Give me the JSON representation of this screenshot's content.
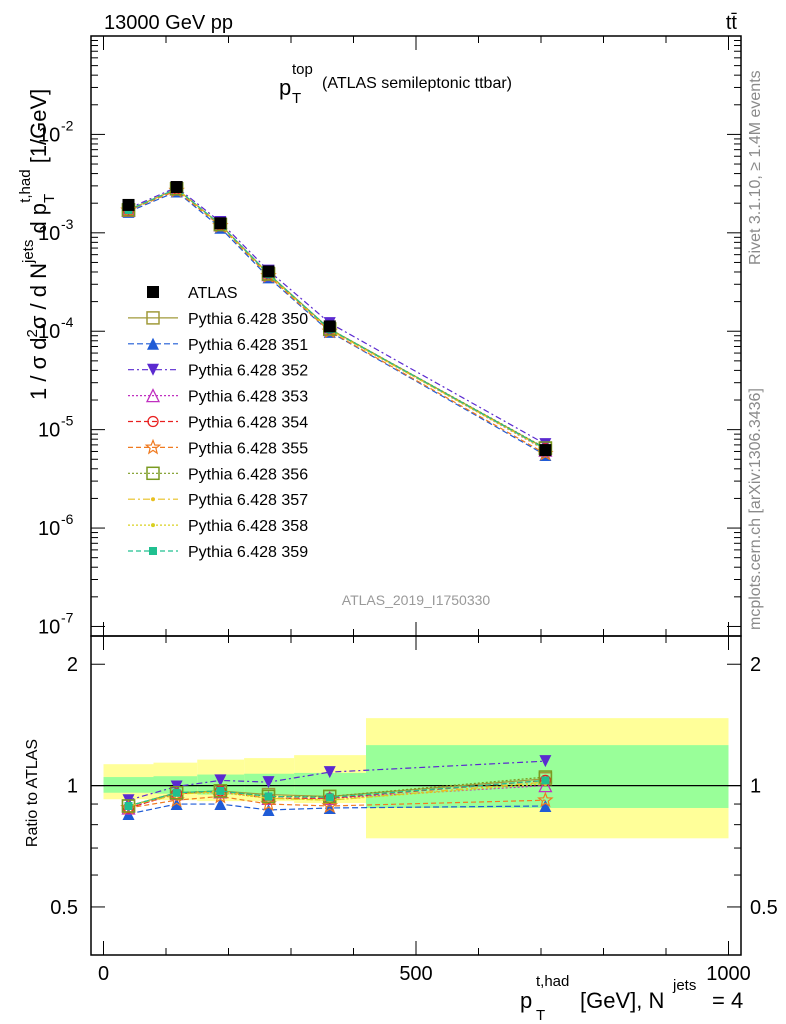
{
  "header": {
    "energy_label": "13000 GeV pp",
    "process_label": "tt̄"
  },
  "side_labels": {
    "rivet": "Rivet 3.1.10, ≥ 1.4M events",
    "mcplots": "mcplots.cern.ch [arXiv:1306.3436]"
  },
  "chart_data": {
    "type": "line",
    "title_main": "p",
    "title_sup": "top",
    "title_sub": "T",
    "title_rest": "(ATLAS semileptonic ttbar)",
    "analysis_label": "ATLAS_2019_I1750330",
    "xlabel": {
      "p": "p",
      "sub": "T",
      "sup": "t,had",
      "unit": "[GeV], N",
      "jets": "jets",
      "eq": "= 4"
    },
    "ylabel": {
      "lead": "1 / σ d",
      "two": "2",
      "mid": "σ /  d N",
      "jets": "jets",
      "d": " d p",
      "sub": "T",
      "sup": "t,had",
      "unit": " [1/GeV]"
    },
    "ratio_ylabel": "Ratio to ATLAS",
    "xlim": [
      -20,
      1020
    ],
    "ylim_log": [
      8e-08,
      0.1
    ],
    "ratio_ylim": [
      0.38,
      2.35
    ],
    "xticks": [
      "0",
      "500",
      "1000"
    ],
    "xtick_values": [
      0,
      500,
      1000
    ],
    "yticks": [
      "10",
      "10",
      "10",
      "10",
      "10",
      "10"
    ],
    "ytick_exps": [
      "-2",
      "-3",
      "-4",
      "-5",
      "-6",
      "-7"
    ],
    "ytick_values": [
      0.01,
      0.001,
      0.0001,
      1e-05,
      1e-06,
      1e-07
    ],
    "ratio_ticks": [
      "2",
      "1",
      "0.5"
    ],
    "ratio_tick_values": [
      2,
      1,
      0.5
    ],
    "x": [
      40,
      117,
      187,
      264,
      362,
      707
    ],
    "bins": [
      [
        0,
        80
      ],
      [
        80,
        150
      ],
      [
        150,
        225
      ],
      [
        225,
        305
      ],
      [
        305,
        420
      ],
      [
        420,
        1000
      ]
    ],
    "atlas": [
      0.00192,
      0.00292,
      0.00125,
      0.000405,
      0.000112,
      6.2e-06
    ],
    "band_green": [
      [
        0.96,
        1.05
      ],
      [
        0.955,
        1.055
      ],
      [
        0.95,
        1.065
      ],
      [
        0.95,
        1.07
      ],
      [
        0.94,
        1.075
      ],
      [
        0.88,
        1.26
      ]
    ],
    "band_yellow": [
      [
        0.925,
        1.13
      ],
      [
        0.92,
        1.14
      ],
      [
        0.915,
        1.16
      ],
      [
        0.915,
        1.17
      ],
      [
        0.905,
        1.19
      ],
      [
        0.74,
        1.47
      ]
    ],
    "series": [
      {
        "name": "ATLAS",
        "label": "ATLAS",
        "color": "#000000",
        "marker": "square-filled",
        "dash": "none",
        "ratio": [
          1,
          1,
          1,
          1,
          1,
          1
        ]
      },
      {
        "name": "350",
        "label": "Pythia 6.428 350",
        "color": "#a09a3a",
        "marker": "square-open",
        "dash": "solid",
        "ratio": [
          0.89,
          0.96,
          0.97,
          0.95,
          0.94,
          1.04
        ]
      },
      {
        "name": "351",
        "label": "Pythia 6.428 351",
        "color": "#1f5bd6",
        "marker": "triangle-up-filled",
        "dash": "6,3",
        "ratio": [
          0.85,
          0.9,
          0.9,
          0.87,
          0.88,
          0.89
        ]
      },
      {
        "name": "352",
        "label": "Pythia 6.428 352",
        "color": "#5b2ad0",
        "marker": "triangle-down-filled",
        "dash": "6,3,2,3",
        "ratio": [
          0.92,
          0.995,
          1.03,
          1.02,
          1.08,
          1.15
        ]
      },
      {
        "name": "353",
        "label": "Pythia 6.428 353",
        "color": "#c030c0",
        "marker": "triangle-up-open",
        "dash": "2,2",
        "ratio": [
          0.88,
          0.955,
          0.965,
          0.93,
          0.93,
          1.0
        ]
      },
      {
        "name": "354",
        "label": "Pythia 6.428 354",
        "color": "#e82020",
        "marker": "circle-open",
        "dash": "5,3",
        "ratio": [
          0.88,
          0.955,
          0.97,
          0.93,
          0.93,
          1.03
        ]
      },
      {
        "name": "355",
        "label": "Pythia 6.428 355",
        "color": "#f07a20",
        "marker": "star-open",
        "dash": "5,3",
        "ratio": [
          0.88,
          0.92,
          0.94,
          0.9,
          0.89,
          0.92
        ]
      },
      {
        "name": "356",
        "label": "Pythia 6.428 356",
        "color": "#7a9a20",
        "marker": "square-open",
        "dash": "2,2",
        "ratio": [
          0.89,
          0.96,
          0.97,
          0.94,
          0.94,
          1.05
        ]
      },
      {
        "name": "357",
        "label": "Pythia 6.428 357",
        "color": "#e8c020",
        "marker": "dot",
        "dash": "7,3,2,3",
        "ratio": [
          0.89,
          0.95,
          0.97,
          0.93,
          0.92,
          1.02
        ]
      },
      {
        "name": "358",
        "label": "Pythia 6.428 358",
        "color": "#d8d020",
        "marker": "dot",
        "dash": "2,2",
        "ratio": [
          0.89,
          0.955,
          0.96,
          0.93,
          0.92,
          1.01
        ]
      },
      {
        "name": "359",
        "label": "Pythia 6.428 359",
        "color": "#20c090",
        "marker": "square-filled-small",
        "dash": "5,3",
        "ratio": [
          0.89,
          0.96,
          0.97,
          0.94,
          0.935,
          1.03
        ]
      }
    ]
  }
}
